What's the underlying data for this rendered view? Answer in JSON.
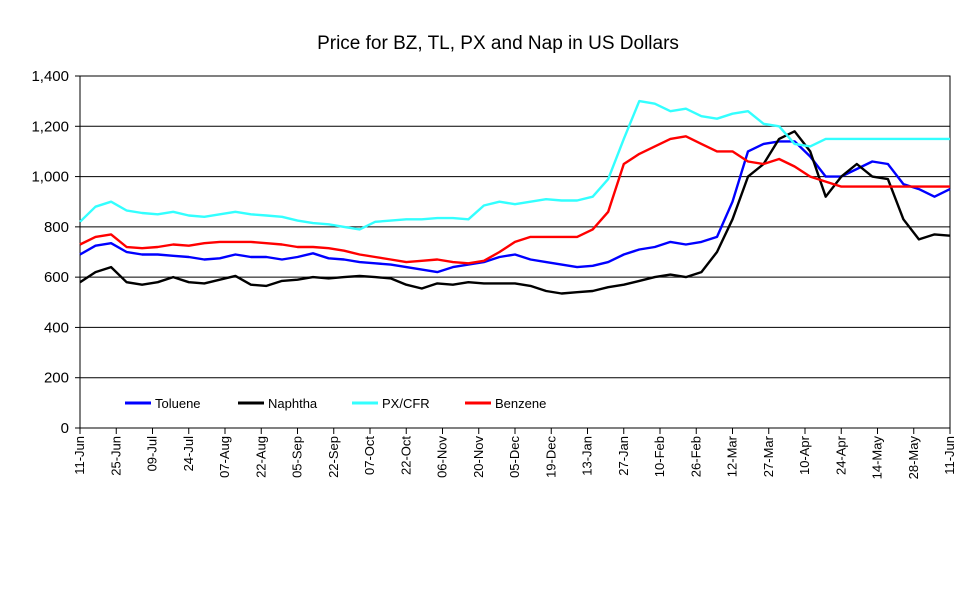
{
  "chart_data": {
    "type": "line",
    "title": "Price for BZ, TL, PX and Nap in US Dollars",
    "xlabel": "",
    "ylabel": "",
    "ylim": [
      0,
      1400
    ],
    "yticks": [
      0,
      200,
      400,
      600,
      800,
      1000,
      1200,
      1400
    ],
    "ytick_labels": [
      "0",
      "200",
      "400",
      "600",
      "800",
      "1,000",
      "1,200",
      "1,400"
    ],
    "x_tick_labels": [
      "11-Jun",
      "25-Jun",
      "09-Jul",
      "24-Jul",
      "07-Aug",
      "22-Aug",
      "05-Sep",
      "22-Sep",
      "07-Oct",
      "22-Oct",
      "06-Nov",
      "20-Nov",
      "05-Dec",
      "19-Dec",
      "13-Jan",
      "27-Jan",
      "10-Feb",
      "26-Feb",
      "12-Mar",
      "27-Mar",
      "10-Apr",
      "24-Apr",
      "14-May",
      "28-May",
      "11-Jun"
    ],
    "grid": "horizontal",
    "legend_position": "bottom-left",
    "series": [
      {
        "name": "Toluene",
        "color": "#0000ff",
        "values": [
          690,
          725,
          735,
          700,
          690,
          690,
          685,
          680,
          670,
          675,
          690,
          680,
          680,
          670,
          680,
          695,
          675,
          670,
          660,
          655,
          650,
          640,
          630,
          620,
          640,
          650,
          660,
          680,
          690,
          670,
          660,
          650,
          640,
          645,
          660,
          690,
          710,
          720,
          740,
          730,
          740,
          760,
          900,
          1100,
          1130,
          1140,
          1140,
          1080,
          1000,
          1000,
          1030,
          1060,
          1050,
          970,
          950,
          920,
          950
        ]
      },
      {
        "name": "Naphtha",
        "color": "#000000",
        "values": [
          580,
          620,
          640,
          580,
          570,
          580,
          600,
          580,
          575,
          590,
          605,
          570,
          565,
          585,
          590,
          600,
          595,
          600,
          605,
          600,
          595,
          570,
          555,
          575,
          570,
          580,
          575,
          575,
          575,
          565,
          545,
          535,
          540,
          545,
          560,
          570,
          585,
          600,
          610,
          600,
          620,
          700,
          830,
          1000,
          1050,
          1150,
          1180,
          1100,
          920,
          1000,
          1050,
          1000,
          990,
          830,
          750,
          770,
          765
        ]
      },
      {
        "name": "PX/CFR",
        "color": "#33ffff",
        "values": [
          820,
          880,
          900,
          865,
          855,
          850,
          860,
          845,
          840,
          850,
          860,
          850,
          845,
          840,
          825,
          815,
          810,
          800,
          790,
          820,
          825,
          830,
          830,
          835,
          835,
          830,
          885,
          900,
          890,
          900,
          910,
          905,
          905,
          920,
          990,
          1150,
          1300,
          1290,
          1260,
          1270,
          1240,
          1230,
          1250,
          1260,
          1210,
          1200,
          1130,
          1120,
          1150,
          1150,
          1150,
          1150,
          1150,
          1150,
          1150,
          1150,
          1150
        ]
      },
      {
        "name": "Benzene",
        "color": "#ff0000",
        "values": [
          730,
          760,
          770,
          720,
          715,
          720,
          730,
          725,
          735,
          740,
          740,
          740,
          735,
          730,
          720,
          720,
          715,
          705,
          690,
          680,
          670,
          660,
          665,
          670,
          660,
          655,
          665,
          700,
          740,
          760,
          760,
          760,
          760,
          790,
          860,
          1050,
          1090,
          1120,
          1150,
          1160,
          1130,
          1100,
          1100,
          1060,
          1050,
          1070,
          1040,
          1000,
          980,
          960,
          960,
          960,
          960,
          960,
          960,
          960,
          960
        ]
      }
    ]
  }
}
